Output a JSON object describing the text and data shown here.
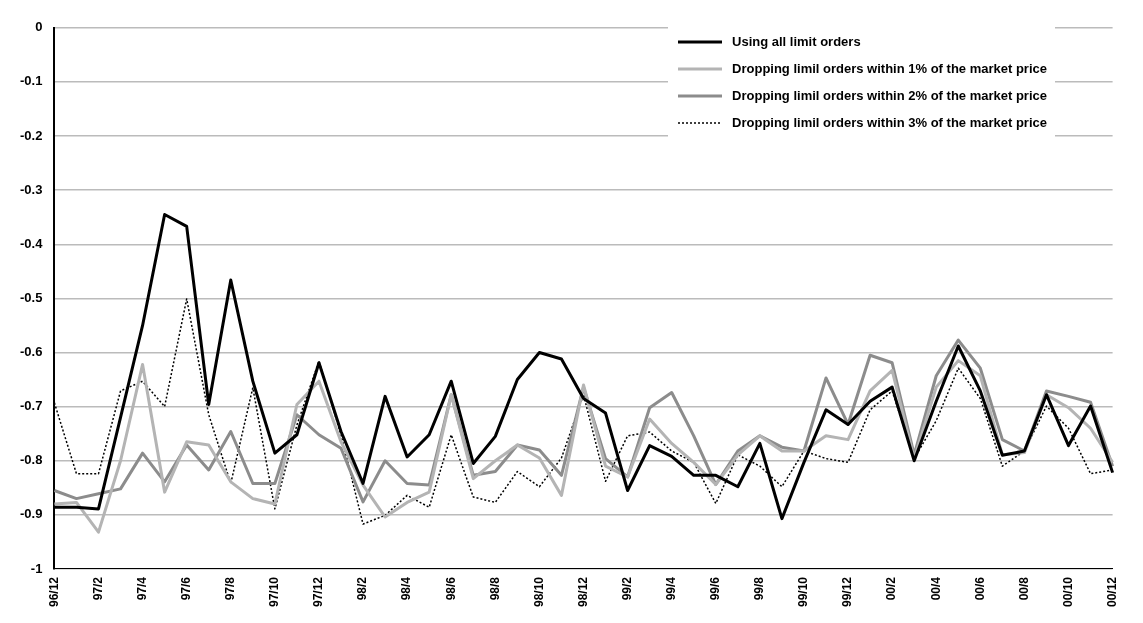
{
  "chart_data": {
    "type": "line",
    "categories": [
      "96/12",
      null,
      "97/2",
      null,
      "97/4",
      null,
      "97/6",
      null,
      "97/8",
      null,
      "97/10",
      null,
      "97/12",
      null,
      "98/2",
      null,
      "98/4",
      null,
      "98/6",
      null,
      "98/8",
      null,
      "98/10",
      null,
      "98/12",
      null,
      "99/2",
      null,
      "99/4",
      null,
      "99/6",
      null,
      "99/8",
      null,
      "99/10",
      null,
      "99/12",
      null,
      "00/2",
      null,
      "00/4",
      null,
      "00/6",
      null,
      "00/8",
      null,
      "00/10",
      null,
      "00/12"
    ],
    "series": [
      {
        "name": "Using all limit orders",
        "color": "#000000",
        "line_style": "solid",
        "values": [
          -0.886,
          -0.886,
          -0.889,
          -0.72,
          -0.55,
          -0.345,
          -0.367,
          -0.696,
          -0.466,
          -0.653,
          -0.786,
          -0.752,
          -0.619,
          -0.746,
          -0.842,
          -0.681,
          -0.793,
          -0.752,
          -0.653,
          -0.805,
          -0.755,
          -0.65,
          -0.6,
          -0.612,
          -0.685,
          -0.712,
          -0.855,
          -0.772,
          -0.792,
          -0.827,
          -0.827,
          -0.848,
          -0.768,
          -0.907,
          -0.803,
          -0.706,
          -0.733,
          -0.69,
          -0.664,
          -0.8,
          -0.69,
          -0.588,
          -0.671,
          -0.79,
          -0.782,
          -0.678,
          -0.772,
          -0.699,
          -0.822
        ]
      },
      {
        "name": "Dropping limil orders within 1% of the market price",
        "color": "#b4b4b4",
        "line_style": "solid",
        "values": [
          -0.88,
          -0.877,
          -0.932,
          -0.8,
          -0.622,
          -0.858,
          -0.765,
          -0.771,
          -0.839,
          -0.87,
          -0.88,
          -0.696,
          -0.653,
          -0.765,
          -0.845,
          -0.904,
          -0.877,
          -0.858,
          -0.678,
          -0.833,
          -0.8,
          -0.771,
          -0.795,
          -0.864,
          -0.66,
          -0.81,
          -0.83,
          -0.723,
          -0.768,
          -0.803,
          -0.844,
          -0.789,
          -0.754,
          -0.782,
          -0.782,
          -0.754,
          -0.761,
          -0.671,
          -0.633,
          -0.796,
          -0.664,
          -0.615,
          -0.643,
          -0.789,
          -0.785,
          -0.678,
          -0.702,
          -0.74,
          -0.803
        ]
      },
      {
        "name": "Dropping limil orders within 2% of the market price",
        "color": "#8c8c8c",
        "line_style": "solid",
        "values": [
          -0.855,
          -0.87,
          -0.861,
          -0.852,
          -0.786,
          -0.839,
          -0.771,
          -0.817,
          -0.746,
          -0.842,
          -0.842,
          -0.715,
          -0.752,
          -0.777,
          -0.876,
          -0.8,
          -0.842,
          -0.845,
          -0.678,
          -0.827,
          -0.82,
          -0.771,
          -0.78,
          -0.827,
          -0.664,
          -0.796,
          -0.83,
          -0.702,
          -0.674,
          -0.754,
          -0.844,
          -0.782,
          -0.754,
          -0.775,
          -0.782,
          -0.647,
          -0.733,
          -0.605,
          -0.619,
          -0.789,
          -0.643,
          -0.577,
          -0.629,
          -0.761,
          -0.782,
          -0.671,
          -0.681,
          -0.692,
          -0.81
        ]
      },
      {
        "name": "Dropping limil orders within 3% of the market price",
        "color": "#000000",
        "line_style": "dotted",
        "values": [
          -0.693,
          -0.824,
          -0.824,
          -0.671,
          -0.653,
          -0.7,
          -0.501,
          -0.715,
          -0.842,
          -0.665,
          -0.889,
          -0.734,
          -0.616,
          -0.752,
          -0.917,
          -0.901,
          -0.864,
          -0.886,
          -0.752,
          -0.867,
          -0.877,
          -0.82,
          -0.848,
          -0.795,
          -0.678,
          -0.838,
          -0.754,
          -0.747,
          -0.782,
          -0.803,
          -0.879,
          -0.789,
          -0.81,
          -0.848,
          -0.782,
          -0.796,
          -0.803,
          -0.706,
          -0.671,
          -0.796,
          -0.726,
          -0.629,
          -0.685,
          -0.81,
          -0.782,
          -0.699,
          -0.74,
          -0.824,
          -0.817
        ]
      }
    ],
    "ylim": [
      -1,
      0
    ],
    "yticks": [
      -1,
      -0.9,
      -0.8,
      -0.7,
      -0.6,
      -0.5,
      -0.4,
      -0.3,
      -0.2,
      -0.1,
      0
    ],
    "grid": "y",
    "legend": "top right",
    "marker": "none"
  }
}
